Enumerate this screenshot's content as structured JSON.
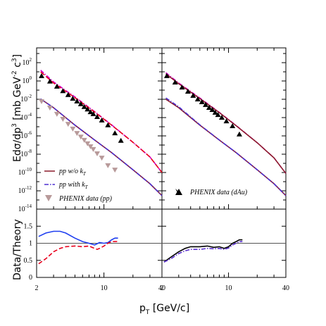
{
  "chart_data": {
    "type": "line",
    "ylabel_main": "Edσ/dp",
    "ylabel_main_units": "[mb GeV",
    "ylabel_ratio": "Data/Theory",
    "xlabel": "p",
    "xlabel_sub": "T",
    "xlabel_units": "[GeV/c]",
    "x_scale": "log",
    "x_ticks": [
      "2",
      "10",
      "40"
    ],
    "y_main_scale": "log",
    "y_main_range": [
      1e-14,
      1000.0
    ],
    "y_main_ticks": [
      {
        "base": "10",
        "exp": "2",
        "v": 100.0
      },
      {
        "base": "10",
        "exp": "0",
        "v": 1.0
      },
      {
        "base": "10",
        "exp": "-2",
        "v": 0.01
      },
      {
        "base": "10",
        "exp": "-4",
        "v": 0.0001
      },
      {
        "base": "10",
        "exp": "-6",
        "v": 1e-06
      },
      {
        "base": "10",
        "exp": "-8",
        "v": 1e-08
      },
      {
        "base": "10",
        "exp": "-10",
        "v": 1e-10
      },
      {
        "base": "10",
        "exp": "-12",
        "v": 1e-12
      },
      {
        "base": "10",
        "exp": "-14",
        "v": 1e-14
      }
    ],
    "y_ratio_range": [
      0,
      2
    ],
    "y_ratio_ticks": [
      "0",
      "0.5",
      "1",
      "1.5"
    ],
    "legend_left": {
      "wo_kt": "pp w/o k",
      "with_kt": "pp with k",
      "kt_sub": "T",
      "phenix_pp": "PHENIX data (pp)"
    },
    "legend_right": {
      "phenix_dau": "PHENIX data (dAu)"
    },
    "colors": {
      "wo_kt_upper": "#e8001c",
      "with_kt_upper": "#d000d0",
      "wo_kt_lower": "#8b1a2b",
      "with_kt_lower": "#4b2fd0",
      "pp_points": "#b89a9a",
      "dau_points": "#000000",
      "ratio_blue": "#1f3ff0",
      "ratio_red": "#e8001c",
      "ratio_black": "#000000",
      "ratio_purple": "#5a2fd0",
      "unity_line": "#555555"
    },
    "panels": [
      {
        "name": "pp",
        "upper_theory_wo_kt": {
          "x": [
            2.2,
            3,
            5,
            8,
            12,
            20,
            30,
            40
          ],
          "y": [
            10,
            0.6,
            0.015,
            0.0004,
            1.5e-05,
            2e-07,
            5e-09,
            1e-10
          ]
        },
        "upper_theory_with_kt": {
          "x": [
            2.2,
            3,
            5,
            8,
            12,
            20,
            30,
            40
          ],
          "y": [
            15,
            0.8,
            0.018,
            0.00045,
            1.6e-05,
            2e-07,
            5e-09,
            1e-10
          ]
        },
        "lower_theory_wo_kt": {
          "x": [
            2.2,
            3,
            5,
            8,
            12,
            20,
            30,
            40
          ],
          "y": [
            0.011,
            0.0012,
            1.5e-05,
            3.5e-07,
            1.5e-08,
            2e-10,
            6e-12,
            3e-13
          ]
        },
        "lower_theory_with_kt": {
          "x": [
            2.2,
            3,
            5,
            8,
            12,
            20,
            30,
            40
          ],
          "y": [
            0.011,
            0.0012,
            1.5e-05,
            3.5e-07,
            1.5e-08,
            2e-10,
            6e-12,
            3e-13
          ]
        },
        "upper_points": {
          "x": [
            2.25,
            2.75,
            3.25,
            3.75,
            4.25,
            4.75,
            5.25,
            5.75,
            6.25,
            6.75,
            7.25,
            7.75,
            8.5,
            9.5,
            11,
            13,
            15
          ],
          "y": [
            3.5,
            0.9,
            0.25,
            0.08,
            0.03,
            0.012,
            0.006,
            0.003,
            0.0015,
            0.0008,
            0.0004,
            0.00025,
            0.00012,
            5e-05,
            1.5e-05,
            2e-06,
            3e-07
          ]
        },
        "lower_points": {
          "x": [
            2.25,
            2.75,
            3.25,
            3.75,
            4.25,
            4.75,
            5.25,
            5.75,
            6.25,
            6.75,
            7.25,
            7.75,
            8.5,
            9.5,
            11,
            13
          ],
          "y": [
            0.006,
            0.0012,
            0.00025,
            7e-05,
            2e-05,
            6e-06,
            2e-06,
            8e-07,
            3.5e-07,
            1.5e-07,
            7e-08,
            3.5e-08,
            1.2e-08,
            4e-09,
            6e-10,
            2e-10
          ]
        },
        "ratio_blue": {
          "x": [
            2.1,
            2.5,
            3,
            3.5,
            4,
            5,
            6,
            7,
            8,
            9,
            10,
            11,
            12,
            13,
            14
          ],
          "y": [
            1.2,
            1.3,
            1.35,
            1.35,
            1.3,
            1.15,
            1.05,
            1.0,
            0.95,
            1.02,
            1.0,
            1.02,
            1.1,
            1.15,
            1.15
          ]
        },
        "ratio_red": {
          "x": [
            2.1,
            2.5,
            3,
            3.5,
            4,
            5,
            6,
            7,
            8,
            8.5,
            9,
            10,
            11,
            12,
            13,
            14
          ],
          "y": [
            0.4,
            0.55,
            0.75,
            0.85,
            0.9,
            0.92,
            0.9,
            0.92,
            0.85,
            0.82,
            0.85,
            0.92,
            1.0,
            1.05,
            1.05,
            1.05
          ]
        }
      },
      {
        "name": "dAu",
        "upper_theory_wo_kt": {
          "x": [
            2.2,
            3,
            5,
            8,
            12,
            20,
            30,
            40
          ],
          "y": [
            6,
            0.5,
            0.012,
            0.00035,
            1.3e-05,
            1.8e-07,
            4e-09,
            8e-11
          ]
        },
        "upper_theory_with_kt": {
          "x": [
            2.2,
            3,
            5,
            8,
            12,
            20,
            30,
            40
          ],
          "y": [
            8,
            0.6,
            0.014,
            0.00038,
            1.4e-05,
            1.8e-07,
            4e-09,
            8e-11
          ]
        },
        "lower_theory_wo_kt": {
          "x": [
            2.2,
            3,
            5,
            8,
            12,
            20,
            30,
            40
          ],
          "y": [
            0.01,
            0.0012,
            1.5e-05,
            3.5e-07,
            1.5e-08,
            2e-10,
            6e-12,
            3e-13
          ]
        },
        "lower_theory_with_kt": {
          "x": [
            2.2,
            3,
            5,
            8,
            12,
            20,
            30,
            40
          ],
          "y": [
            0.014,
            0.0015,
            1.6e-05,
            3.6e-07,
            1.5e-08,
            2e-10,
            6e-12,
            3e-13
          ]
        },
        "upper_points": {
          "x": [
            2.25,
            2.75,
            3.25,
            3.75,
            4.25,
            4.75,
            5.25,
            5.75,
            6.25,
            6.75,
            7.25,
            7.75,
            8.5,
            9.5,
            11,
            13
          ],
          "y": [
            3.5,
            0.7,
            0.2,
            0.07,
            0.025,
            0.01,
            0.005,
            0.0025,
            0.0012,
            0.0007,
            0.00035,
            0.0002,
            0.0001,
            4e-05,
            1.2e-05,
            1.5e-06
          ]
        },
        "ratio_black": {
          "x": [
            2.1,
            2.5,
            3,
            3.5,
            4,
            5,
            6,
            7,
            8,
            9,
            10,
            11,
            12,
            13,
            14
          ],
          "y": [
            0.45,
            0.6,
            0.75,
            0.85,
            0.9,
            0.9,
            0.92,
            0.88,
            0.9,
            0.85,
            0.9,
            1.0,
            1.05,
            1.1,
            1.1
          ]
        },
        "ratio_purple": {
          "x": [
            2.1,
            2.5,
            3,
            3.5,
            4,
            5,
            6,
            7,
            8,
            9,
            10,
            11,
            12,
            13,
            14
          ],
          "y": [
            0.45,
            0.55,
            0.7,
            0.78,
            0.82,
            0.82,
            0.85,
            0.84,
            0.85,
            0.82,
            0.86,
            0.95,
            1.0,
            1.05,
            1.05
          ]
        }
      }
    ]
  }
}
